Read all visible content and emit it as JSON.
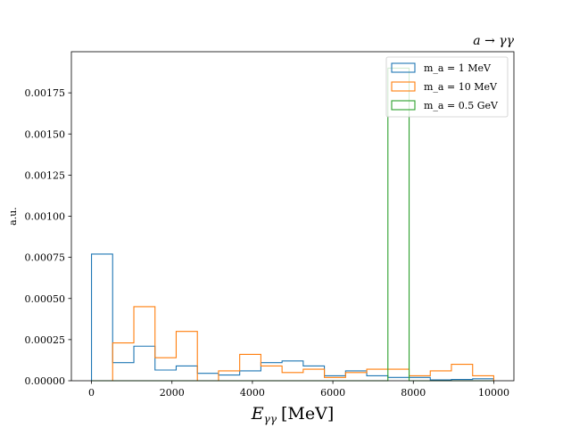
{
  "chart_data": {
    "type": "histogram",
    "title": "a → γγ",
    "xlabel": "E_γγ [MeV]",
    "xlabel_main": "E",
    "xlabel_sub": "γγ",
    "xlabel_unit": "[MeV]",
    "ylabel": "a.u.",
    "xlim": [
      -500,
      10500
    ],
    "ylim": [
      0,
      0.002
    ],
    "x_ticks": [
      0,
      2000,
      4000,
      6000,
      8000,
      10000
    ],
    "x_tick_labels": [
      "0",
      "2000",
      "4000",
      "6000",
      "8000",
      "10000"
    ],
    "y_ticks": [
      0,
      0.00025,
      0.0005,
      0.00075,
      0.001,
      0.00125,
      0.0015,
      0.00175
    ],
    "y_tick_labels": [
      "0.00000",
      "0.00025",
      "0.00050",
      "0.00075",
      "0.00100",
      "0.00125",
      "0.00150",
      "0.00175"
    ],
    "legend_position": "top-right",
    "bin_edges": [
      0,
      526,
      1053,
      1579,
      2105,
      2632,
      3158,
      3684,
      4211,
      4737,
      5263,
      5789,
      6316,
      6842,
      7368,
      7895,
      8421,
      8947,
      9474,
      10000
    ],
    "series": [
      {
        "name": "m_a = 1 MeV",
        "legend_label": "m_a = 1 MeV",
        "color": "#1f77b4",
        "values": [
          0.00077,
          0.00011,
          0.00021,
          6.5e-05,
          9e-05,
          4.5e-05,
          3.5e-05,
          6e-05,
          0.00011,
          0.00012,
          9e-05,
          3e-05,
          6e-05,
          3e-05,
          2e-05,
          2e-05,
          5e-06,
          8e-06,
          1.2e-05
        ]
      },
      {
        "name": "m_a = 10 MeV",
        "legend_label": "m_a = 10 MeV",
        "color": "#ff7f0e",
        "values": [
          0,
          0.00023,
          0.00045,
          0.00014,
          0.0003,
          0.0,
          6e-05,
          0.00016,
          9e-05,
          5e-05,
          7e-05,
          2e-05,
          5e-05,
          7e-05,
          7e-05,
          3e-05,
          6e-05,
          0.0001,
          3e-05
        ]
      },
      {
        "name": "m_a = 0.5 GeV",
        "legend_label": "m_a = 0.5 GeV",
        "color": "#2ca02c",
        "values": [
          0,
          0,
          0,
          0,
          0,
          0,
          0,
          0,
          0,
          0,
          0,
          0,
          0,
          0,
          0.0019,
          0,
          0,
          0,
          0
        ]
      }
    ]
  }
}
